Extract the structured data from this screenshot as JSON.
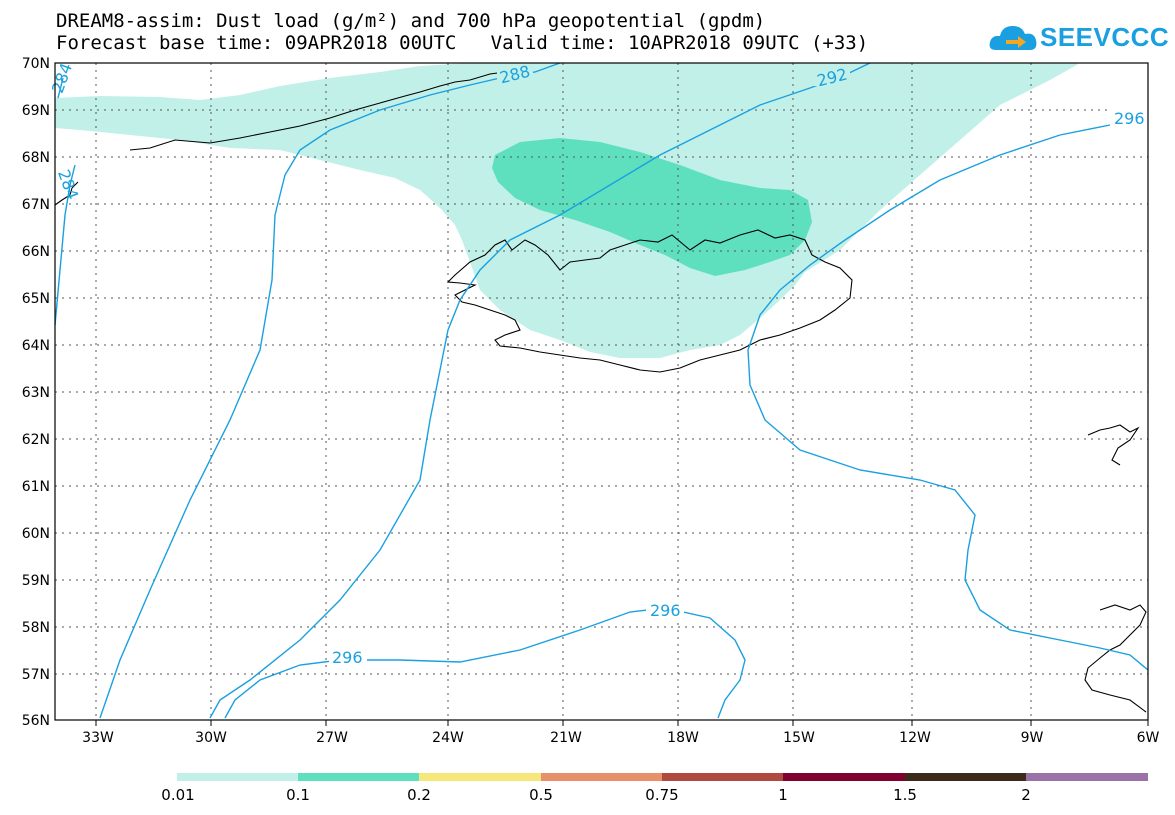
{
  "title": {
    "line1": "DREAM8-assim: Dust load (g/m²) and 700 hPa geopotential (gpdm)",
    "line2": "Forecast base time: 09APR2018 00UTC   Valid time: 10APR2018 09UTC (+33)"
  },
  "logo": {
    "text": "SEEVCCC",
    "icon": "cloud-arrow-icon",
    "color": "#1aa0e0"
  },
  "map": {
    "lat_labels": [
      "70N",
      "69N",
      "68N",
      "67N",
      "66N",
      "65N",
      "64N",
      "63N",
      "62N",
      "61N",
      "60N",
      "59N",
      "58N",
      "57N",
      "56N"
    ],
    "lon_labels": [
      "33W",
      "30W",
      "27W",
      "24W",
      "21W",
      "18W",
      "15W",
      "12W",
      "9W",
      "6W"
    ],
    "contour_labels": [
      "288",
      "292",
      "296",
      "296",
      "296",
      "284",
      "284"
    ]
  },
  "colorbar": {
    "colors": [
      "#c1f0e8",
      "#5ee0bf",
      "#f5e77a",
      "#e8906a",
      "#b04a3e",
      "#800030",
      "#3e2a1a",
      "#9b72a8"
    ],
    "labels": [
      "0.01",
      "0.1",
      "0.2",
      "0.5",
      "0.75",
      "1",
      "1.5",
      "2"
    ]
  },
  "colors": {
    "contour": "#1aa0e0",
    "dust_low": "#c1f0e8",
    "dust_mid": "#5ee0bf",
    "coast": "#000000"
  }
}
